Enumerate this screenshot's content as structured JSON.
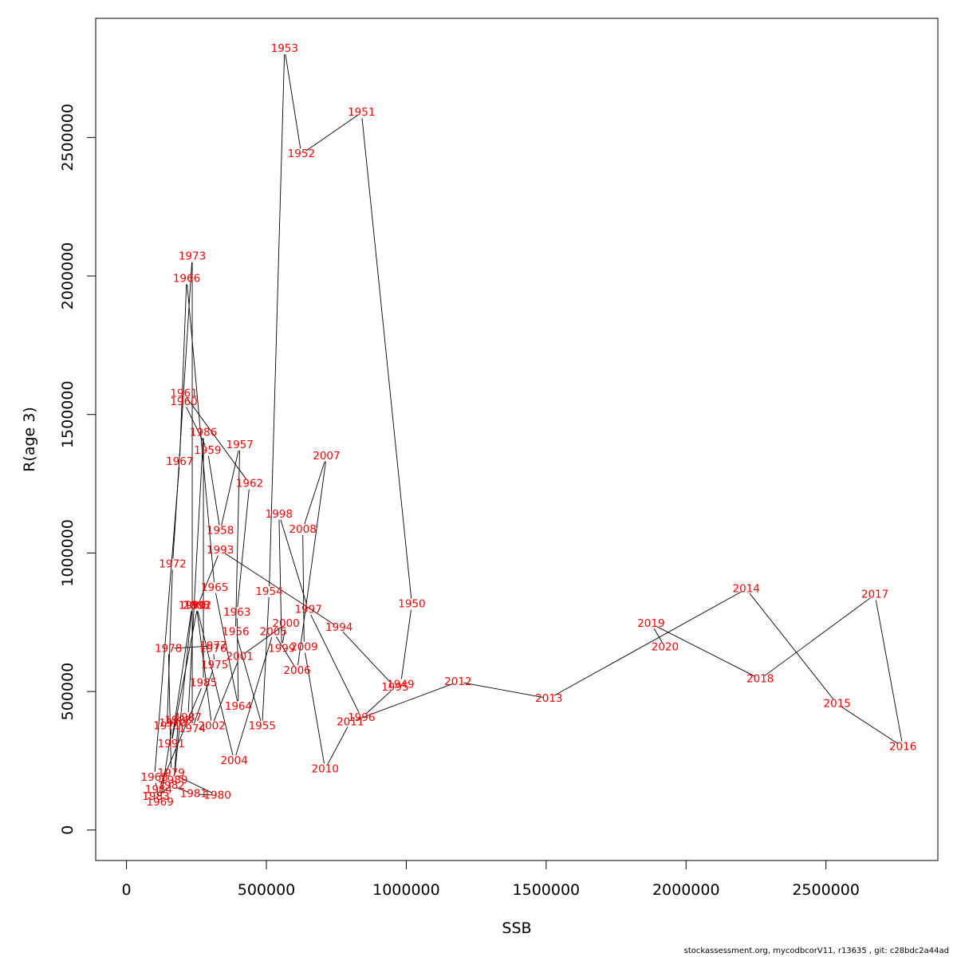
{
  "chart_data": {
    "type": "line",
    "title": "",
    "xlabel": "SSB",
    "ylabel": "R(age 3)",
    "xlim": [
      -110000,
      2900000
    ],
    "ylim": [
      -110000,
      2930000
    ],
    "xticks": [
      0,
      500000,
      1000000,
      1500000,
      2000000,
      2500000
    ],
    "yticks": [
      0,
      500000,
      1000000,
      1500000,
      2000000,
      2500000
    ],
    "xtick_labels": [
      "0",
      "500000",
      "1000000",
      "1500000",
      "2000000",
      "2500000"
    ],
    "ytick_labels": [
      "0",
      "500000",
      "1000000",
      "1500000",
      "2000000",
      "2500000"
    ],
    "grid": false,
    "line_color": "#000000",
    "label_color": "#ff0000",
    "points": [
      {
        "year": "1949",
        "ssb": 980000,
        "r": 525000
      },
      {
        "year": "1950",
        "ssb": 1020000,
        "r": 815000
      },
      {
        "year": "1951",
        "ssb": 840000,
        "r": 2590000
      },
      {
        "year": "1952",
        "ssb": 625000,
        "r": 2440000
      },
      {
        "year": "1953",
        "ssb": 565000,
        "r": 2820000
      },
      {
        "year": "1954",
        "ssb": 510000,
        "r": 860000
      },
      {
        "year": "1955",
        "ssb": 485000,
        "r": 375000
      },
      {
        "year": "1956",
        "ssb": 390000,
        "r": 715000
      },
      {
        "year": "1957",
        "ssb": 405000,
        "r": 1390000
      },
      {
        "year": "1958",
        "ssb": 335000,
        "r": 1080000
      },
      {
        "year": "1959",
        "ssb": 290000,
        "r": 1370000
      },
      {
        "year": "1960",
        "ssb": 205000,
        "r": 1545000
      },
      {
        "year": "1961",
        "ssb": 205000,
        "r": 1575000
      },
      {
        "year": "1962",
        "ssb": 440000,
        "r": 1250000
      },
      {
        "year": "1963",
        "ssb": 395000,
        "r": 785000
      },
      {
        "year": "1964",
        "ssb": 400000,
        "r": 445000
      },
      {
        "year": "1965",
        "ssb": 315000,
        "r": 875000
      },
      {
        "year": "1966",
        "ssb": 215000,
        "r": 1990000
      },
      {
        "year": "1967",
        "ssb": 190000,
        "r": 1330000
      },
      {
        "year": "1968",
        "ssb": 100000,
        "r": 190000
      },
      {
        "year": "1969",
        "ssb": 120000,
        "r": 100000
      },
      {
        "year": "1970",
        "ssb": 165000,
        "r": 385000
      },
      {
        "year": "1971",
        "ssb": 145000,
        "r": 375000
      },
      {
        "year": "1972",
        "ssb": 165000,
        "r": 960000
      },
      {
        "year": "1973",
        "ssb": 235000,
        "r": 2070000
      },
      {
        "year": "1974",
        "ssb": 235000,
        "r": 365000
      },
      {
        "year": "1975",
        "ssb": 315000,
        "r": 595000
      },
      {
        "year": "1976",
        "ssb": 310000,
        "r": 655000
      },
      {
        "year": "1977",
        "ssb": 310000,
        "r": 665000
      },
      {
        "year": "1978",
        "ssb": 150000,
        "r": 655000
      },
      {
        "year": "1979",
        "ssb": 160000,
        "r": 205000
      },
      {
        "year": "1980",
        "ssb": 325000,
        "r": 125000
      },
      {
        "year": "1981",
        "ssb": 240000,
        "r": 130000
      },
      {
        "year": "1982",
        "ssb": 160000,
        "r": 160000
      },
      {
        "year": "1983",
        "ssb": 105000,
        "r": 120000
      },
      {
        "year": "1984",
        "ssb": 115000,
        "r": 145000
      },
      {
        "year": "1985",
        "ssb": 275000,
        "r": 530000
      },
      {
        "year": "1986",
        "ssb": 275000,
        "r": 1435000
      },
      {
        "year": "1987",
        "ssb": 220000,
        "r": 405000
      },
      {
        "year": "1988",
        "ssb": 185000,
        "r": 395000
      },
      {
        "year": "1989",
        "ssb": 170000,
        "r": 180000
      },
      {
        "year": "1990",
        "ssb": 235000,
        "r": 810000
      },
      {
        "year": "1991",
        "ssb": 160000,
        "r": 310000
      },
      {
        "year": "1992",
        "ssb": 255000,
        "r": 810000
      },
      {
        "year": "1993",
        "ssb": 335000,
        "r": 1010000
      },
      {
        "year": "1994",
        "ssb": 760000,
        "r": 730000
      },
      {
        "year": "1995",
        "ssb": 960000,
        "r": 515000
      },
      {
        "year": "1996",
        "ssb": 840000,
        "r": 405000
      },
      {
        "year": "1997",
        "ssb": 650000,
        "r": 795000
      },
      {
        "year": "1998",
        "ssb": 545000,
        "r": 1140000
      },
      {
        "year": "1999",
        "ssb": 555000,
        "r": 655000
      },
      {
        "year": "2000",
        "ssb": 570000,
        "r": 745000
      },
      {
        "year": "2001",
        "ssb": 405000,
        "r": 625000
      },
      {
        "year": "2002",
        "ssb": 305000,
        "r": 375000
      },
      {
        "year": "2003",
        "ssb": 250000,
        "r": 810000
      },
      {
        "year": "2004",
        "ssb": 385000,
        "r": 250000
      },
      {
        "year": "2005",
        "ssb": 525000,
        "r": 715000
      },
      {
        "year": "2006",
        "ssb": 610000,
        "r": 575000
      },
      {
        "year": "2007",
        "ssb": 715000,
        "r": 1350000
      },
      {
        "year": "2008",
        "ssb": 630000,
        "r": 1085000
      },
      {
        "year": "2009",
        "ssb": 635000,
        "r": 660000
      },
      {
        "year": "2010",
        "ssb": 710000,
        "r": 220000
      },
      {
        "year": "2011",
        "ssb": 800000,
        "r": 390000
      },
      {
        "year": "2012",
        "ssb": 1185000,
        "r": 535000
      },
      {
        "year": "2013",
        "ssb": 1510000,
        "r": 475000
      },
      {
        "year": "2014",
        "ssb": 2215000,
        "r": 870000
      },
      {
        "year": "2015",
        "ssb": 2540000,
        "r": 455000
      },
      {
        "year": "2016",
        "ssb": 2775000,
        "r": 300000
      },
      {
        "year": "2017",
        "ssb": 2675000,
        "r": 850000
      },
      {
        "year": "2018",
        "ssb": 2265000,
        "r": 545000
      },
      {
        "year": "2019",
        "ssb": 1875000,
        "r": 745000
      },
      {
        "year": "2020",
        "ssb": 1925000,
        "r": 660000
      }
    ]
  },
  "footer": "stockassessment.org, mycodbcorV11, r13635 , git: c28bdc2a44ad"
}
